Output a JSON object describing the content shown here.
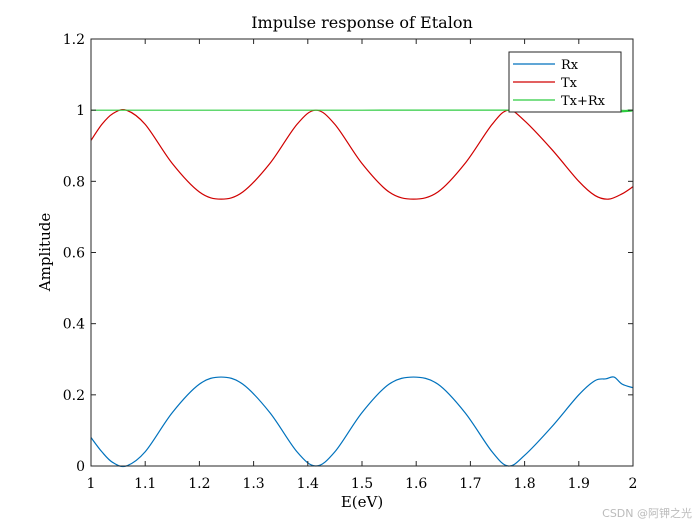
{
  "chart_data": {
    "type": "line",
    "title": "Impulse response of Etalon",
    "xlabel": "E(eV)",
    "ylabel": "Amplitude",
    "xlim": [
      1,
      2
    ],
    "ylim": [
      0,
      1.2
    ],
    "xticks": [
      1,
      1.1,
      1.2,
      1.3,
      1.4,
      1.5,
      1.6,
      1.7,
      1.8,
      1.9,
      2
    ],
    "xtick_labels": [
      "1",
      "1.1",
      "1.2",
      "1.3",
      "1.4",
      "1.5",
      "1.6",
      "1.7",
      "1.8",
      "1.9",
      "2"
    ],
    "yticks": [
      0,
      0.2,
      0.4,
      0.6,
      0.8,
      1,
      1.2
    ],
    "ytick_labels": [
      "0",
      "0.2",
      "0.4",
      "0.6",
      "0.8",
      "1",
      "1.2"
    ],
    "grid": false,
    "legend_position": "top-right",
    "series": [
      {
        "name": "Rx",
        "color": "#0072BD",
        "x": [
          1.0,
          1.02,
          1.04,
          1.065,
          1.1,
          1.15,
          1.2,
          1.24,
          1.28,
          1.33,
          1.38,
          1.415,
          1.45,
          1.5,
          1.55,
          1.595,
          1.64,
          1.69,
          1.74,
          1.77,
          1.8,
          1.85,
          1.9,
          1.93,
          1.95,
          1.965,
          1.98,
          2.0
        ],
        "y": [
          0.08,
          0.04,
          0.01,
          0.0,
          0.04,
          0.15,
          0.23,
          0.25,
          0.23,
          0.15,
          0.04,
          0.0,
          0.04,
          0.15,
          0.23,
          0.25,
          0.23,
          0.15,
          0.04,
          0.0,
          0.03,
          0.11,
          0.2,
          0.24,
          0.245,
          0.25,
          0.23,
          0.22
        ]
      },
      {
        "name": "Tx",
        "color": "#D00000",
        "x": [
          1.0,
          1.02,
          1.04,
          1.065,
          1.1,
          1.15,
          1.2,
          1.24,
          1.28,
          1.33,
          1.38,
          1.415,
          1.45,
          1.5,
          1.55,
          1.595,
          1.64,
          1.69,
          1.74,
          1.77,
          1.8,
          1.85,
          1.9,
          1.93,
          1.955,
          1.98,
          2.0
        ],
        "y": [
          0.915,
          0.96,
          0.99,
          1.0,
          0.96,
          0.85,
          0.77,
          0.75,
          0.77,
          0.85,
          0.96,
          1.0,
          0.96,
          0.85,
          0.77,
          0.75,
          0.77,
          0.85,
          0.96,
          1.0,
          0.97,
          0.89,
          0.8,
          0.76,
          0.75,
          0.765,
          0.785
        ]
      },
      {
        "name": "Tx+Rx",
        "color": "#2ECC40",
        "x": [
          1.0,
          1.5,
          1.96,
          1.975,
          1.99,
          2.0
        ],
        "y": [
          1.0,
          1.0,
          1.0,
          0.995,
          1.0,
          1.0
        ]
      }
    ]
  },
  "watermark": "CSDN @阿钾之光"
}
